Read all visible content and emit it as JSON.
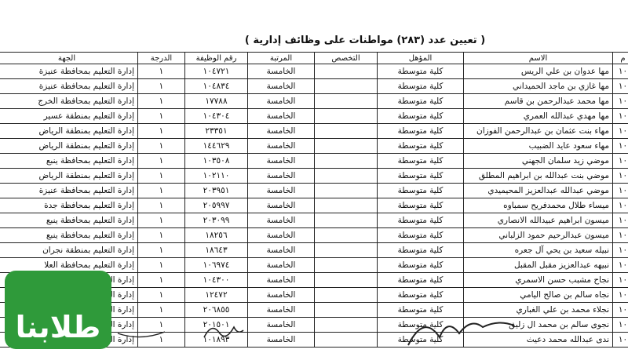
{
  "title": "( تعيين عدد (٢٨٣) مواطنات على وظائف إدارية )",
  "table": {
    "headers": {
      "no": "م",
      "name": "الاسم",
      "qualification": "المؤهل",
      "specialty": "التخصص",
      "rank": "المرتبة",
      "job_no": "رقم الوظيفة",
      "grade": "الدرجة",
      "dept": "الجهة"
    },
    "rows": [
      {
        "no": "١٠",
        "name": "مها عدوان بن علي الريس",
        "qualification": "كلية متوسطة",
        "rank": "الخامسة",
        "job_no": "١٠٤٧٢١",
        "grade": "١",
        "dept": "إدارة التعليم بمحافظة عنيزة"
      },
      {
        "no": "١٠",
        "name": "مها غازي بن ماجد الحميداني",
        "qualification": "كلية متوسطة",
        "rank": "الخامسة",
        "job_no": "١٠٤٨٣٤",
        "grade": "١",
        "dept": "إدارة التعليم بمحافظة عنيزة"
      },
      {
        "no": "١٠",
        "name": "مها محمد عبدالرحمن بن قاسم",
        "qualification": "كلية متوسطة",
        "rank": "الخامسة",
        "job_no": "١٧٧٨٨",
        "grade": "١",
        "dept": "إدارة التعليم بمحافظة الخرج"
      },
      {
        "no": "١٠",
        "name": "مها مهدي عبدالله العمري",
        "qualification": "كلية متوسطة",
        "rank": "الخامسة",
        "job_no": "١٠٤٣٠٤",
        "grade": "١",
        "dept": "إدارة التعليم بمنطقة عسير"
      },
      {
        "no": "١٠",
        "name": "مهاء بنت عثمان بن عبدالرحمن الفوزان",
        "qualification": "كلية متوسطة",
        "rank": "الخامسة",
        "job_no": "٢٣٣٥١",
        "grade": "١",
        "dept": "إدارة التعليم بمنطقة الرياض"
      },
      {
        "no": "١٠",
        "name": "مهاء سعود عايد الضبيب",
        "qualification": "كلية متوسطة",
        "rank": "الخامسة",
        "job_no": "١٤٤٦٢٩",
        "grade": "١",
        "dept": "إدارة التعليم بمنطقة الرياض"
      },
      {
        "no": "١٠",
        "name": "موضي زيد سلمان الجهني",
        "qualification": "كلية متوسطة",
        "rank": "الخامسة",
        "job_no": "١٠٣٥٠٨",
        "grade": "١",
        "dept": "إدارة التعليم بمحافظة ينبع"
      },
      {
        "no": "١٠",
        "name": "موضي بنت عبدالله بن ابراهيم المطلق",
        "qualification": "كلية متوسطة",
        "rank": "الخامسة",
        "job_no": "١٠٢١١٠",
        "grade": "١",
        "dept": "إدارة التعليم بمنطقة الرياض"
      },
      {
        "no": "١٠",
        "name": "موضي عبدالله عبدالعزيز المحيميدي",
        "qualification": "كلية متوسطة",
        "rank": "الخامسة",
        "job_no": "٢٠٣٩٥١",
        "grade": "١",
        "dept": "إدارة التعليم بمحافظة عنيزة"
      },
      {
        "no": "١٠",
        "name": "ميساء طلال محمدفريح سمباوه",
        "qualification": "كلية متوسطة",
        "rank": "الخامسة",
        "job_no": "٢٠٥٩٩٧",
        "grade": "١",
        "dept": "إدارة التعليم بمحافظة جدة"
      },
      {
        "no": "١٠",
        "name": "ميسون ابراهيم عبيدالله الانصاري",
        "qualification": "كلية متوسطة",
        "rank": "الخامسة",
        "job_no": "٢٠٣٠٩٩",
        "grade": "١",
        "dept": "إدارة التعليم بمحافظة ينبع"
      },
      {
        "no": "١٠",
        "name": "ميسون عبدالرحيم حمود الزلباني",
        "qualification": "كلية متوسطة",
        "rank": "الخامسة",
        "job_no": "١٨٢٥٦",
        "grade": "١",
        "dept": "إدارة التعليم بمحافظة ينبع"
      },
      {
        "no": "١٠",
        "name": "نبيله سعيد بن يحي آل جعره",
        "qualification": "كلية متوسطة",
        "rank": "الخامسة",
        "job_no": "١٨٦٤٣",
        "grade": "١",
        "dept": "إدارة التعليم بمنطقة نجران"
      },
      {
        "no": "١٠",
        "name": "نبيهه عبدالعزيز مقبل المقبل",
        "qualification": "كلية متوسطة",
        "rank": "الخامسة",
        "job_no": "١٠٦٩٧٤",
        "grade": "١",
        "dept": "إدارة التعليم بمحافظة العلا"
      },
      {
        "no": "١٠",
        "name": "نجاح مشبب حسن الاسمري",
        "qualification": "كلية متوسطة",
        "rank": "الخامسة",
        "job_no": "١٠٤٣٠٠",
        "grade": "١",
        "dept": "إدارة التعليم بمنطقة عسير"
      },
      {
        "no": "١٠",
        "name": "نجاه سالم بن صالح اليامي",
        "qualification": "كلية متوسطة",
        "rank": "الخامسة",
        "job_no": "١٢٤٧٢",
        "grade": "١",
        "dept": "إدارة التعليم بمنطقة الرياض"
      },
      {
        "no": "١٠",
        "name": "نجلاء محمد بن علي الغباري",
        "qualification": "كلية متوسطة",
        "rank": "الخامسة",
        "job_no": "٢٠٦٨٥٥",
        "grade": "١",
        "dept": "إدارة التعليم"
      },
      {
        "no": "١٠",
        "name": "نجوى سالم بن محمد ال زليق",
        "qualification": "كلية متوسطة",
        "rank": "الخامسة",
        "job_no": "٢٠١٥٠١",
        "grade": "١",
        "dept": "إدارة التعليم"
      },
      {
        "no": "١٠",
        "name": "ندى عبدالله محمد دعيث",
        "qualification": "كلية متوسطة",
        "rank": "الخامسة",
        "job_no": "١٠١٨٩٣",
        "grade": "١",
        "dept": "إدارة التعليم"
      }
    ]
  },
  "logo": "طلابنا"
}
